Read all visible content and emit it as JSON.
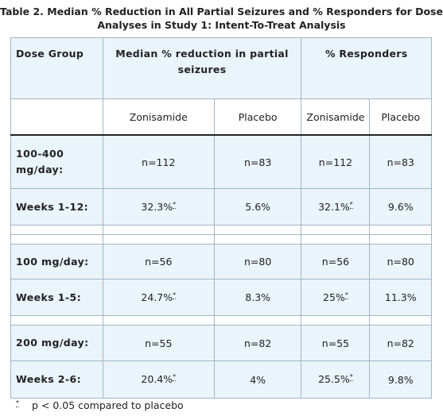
{
  "title": "Table 2. Median % Reduction in All Partial Seizures and % Responders for Dose Analyses in Study 1: Intent-To-Treat Analysis",
  "table": {
    "header": [
      "Dose Group",
      "Median % reduction in partial seizures",
      "% Responders"
    ],
    "subheader": [
      "Zonisamide",
      "Placebo",
      "Zonisamide",
      "Placebo"
    ],
    "rows": [
      [
        "100-400 mg/day:",
        "n=112",
        "n=83",
        "n=112",
        "n=83"
      ],
      [
        "Weeks 1-12:",
        "32.3%",
        "5.6%",
        "32.1%",
        "9.6%"
      ],
      [
        "100 mg/day:",
        "n=56",
        "n=80",
        "n=56",
        "n=80"
      ],
      [
        "Weeks 1-5:",
        "24.7%",
        "8.3%",
        "25%",
        "11.3%"
      ],
      [
        "200 mg/day:",
        "n=55",
        "n=82",
        "n=55",
        "n=82"
      ],
      [
        "Weeks 2-6:",
        "20.4%",
        "4%",
        "25.5%",
        "9.8%"
      ]
    ],
    "note_mark": "*"
  },
  "footnote": {
    "mark": "*",
    "text": "p < 0.05 compared to placebo"
  }
}
